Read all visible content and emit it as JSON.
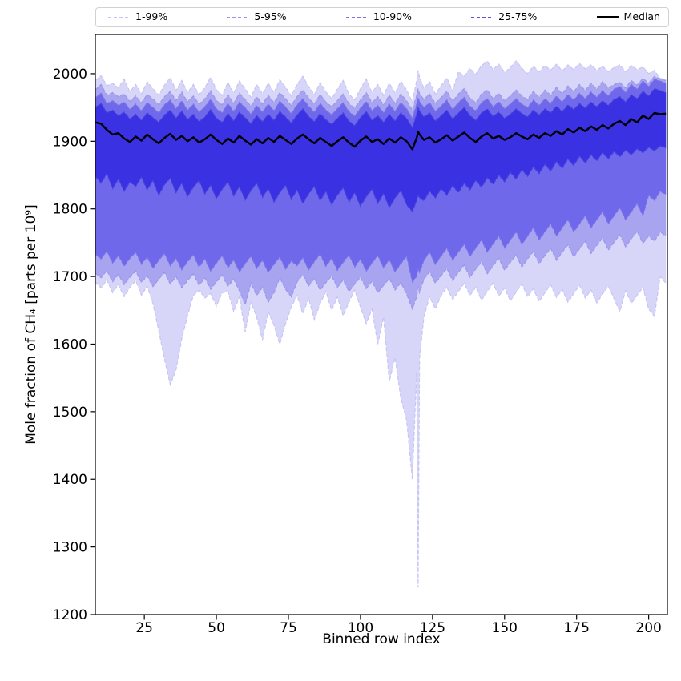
{
  "figure": {
    "background": "#ffffff",
    "spine_color": "#000000"
  },
  "legend": {
    "entries": [
      {
        "label": "1-99%",
        "color": "#c6c5f4",
        "style": "dashed",
        "weight": 1.5
      },
      {
        "label": "5-95%",
        "color": "#9a96ed",
        "style": "dashed",
        "weight": 1.5
      },
      {
        "label": "10-90%",
        "color": "#7a73e9",
        "style": "dashed",
        "weight": 1.5
      },
      {
        "label": "25-75%",
        "color": "#5a51e0",
        "style": "dashed",
        "weight": 1.8
      },
      {
        "label": "Median",
        "color": "#000000",
        "style": "solid",
        "weight": 3
      }
    ]
  },
  "chart_data": {
    "type": "area",
    "title": "",
    "xlabel": "Binned row index",
    "ylabel": "Mole fraction of CH₄ [parts per 10⁹]",
    "legend_position": "top",
    "grid": false,
    "xlim": [
      8,
      206.5
    ],
    "ylim": [
      1200,
      2058
    ],
    "xticks": [
      25,
      50,
      75,
      100,
      125,
      150,
      175,
      200
    ],
    "yticks": [
      1200,
      1300,
      1400,
      1500,
      1600,
      1700,
      1800,
      1900,
      2000
    ],
    "median_color": "#000000",
    "bands": [
      {
        "label": "1-99%",
        "lower": "p01",
        "upper": "p99",
        "fill": "#d8d6f8",
        "line": "#c6c5f4"
      },
      {
        "label": "5-95%",
        "lower": "p05",
        "upper": "p95",
        "fill": "#a8a4f0",
        "line": "#9a96ed"
      },
      {
        "label": "10-90%",
        "lower": "p10",
        "upper": "p90",
        "fill": "#6f68ea",
        "line": "#7a73e9"
      },
      {
        "label": "25-75%",
        "lower": "p25",
        "upper": "p75",
        "fill": "#3a31e2",
        "line": "#4a42dc"
      }
    ],
    "x": [
      8,
      10,
      12,
      14,
      16,
      18,
      20,
      22,
      24,
      26,
      28,
      30,
      32,
      34,
      36,
      38,
      40,
      42,
      44,
      46,
      48,
      50,
      52,
      54,
      56,
      58,
      60,
      62,
      64,
      66,
      68,
      70,
      72,
      74,
      76,
      78,
      80,
      82,
      84,
      86,
      88,
      90,
      92,
      94,
      96,
      98,
      100,
      102,
      104,
      106,
      108,
      110,
      112,
      114,
      116,
      118,
      119.5,
      120,
      120.5,
      122,
      124,
      126,
      128,
      130,
      132,
      134,
      136,
      138,
      140,
      142,
      144,
      146,
      148,
      150,
      152,
      154,
      156,
      158,
      160,
      162,
      164,
      166,
      168,
      170,
      172,
      174,
      176,
      178,
      180,
      182,
      184,
      186,
      188,
      190,
      192,
      194,
      196,
      198,
      200,
      202,
      204,
      206
    ],
    "series": {
      "median": [
        1928,
        1926,
        1917,
        1910,
        1912,
        1904,
        1899,
        1907,
        1901,
        1910,
        1903,
        1897,
        1905,
        1911,
        1902,
        1908,
        1900,
        1906,
        1898,
        1903,
        1910,
        1902,
        1896,
        1904,
        1898,
        1908,
        1901,
        1895,
        1903,
        1897,
        1905,
        1899,
        1908,
        1902,
        1896,
        1904,
        1910,
        1903,
        1897,
        1905,
        1899,
        1893,
        1900,
        1906,
        1898,
        1892,
        1901,
        1907,
        1899,
        1903,
        1896,
        1904,
        1898,
        1906,
        1900,
        1888,
        1905,
        1914,
        1910,
        1902,
        1906,
        1898,
        1903,
        1909,
        1901,
        1907,
        1913,
        1905,
        1899,
        1907,
        1912,
        1904,
        1908,
        1902,
        1906,
        1912,
        1907,
        1903,
        1910,
        1905,
        1912,
        1908,
        1915,
        1910,
        1918,
        1913,
        1920,
        1915,
        1922,
        1917,
        1924,
        1919,
        1926,
        1930,
        1924,
        1933,
        1928,
        1938,
        1933,
        1942,
        1940,
        1941
      ],
      "p75": [
        1950,
        1956,
        1942,
        1946,
        1938,
        1943,
        1933,
        1940,
        1931,
        1942,
        1935,
        1928,
        1939,
        1946,
        1934,
        1945,
        1932,
        1940,
        1929,
        1936,
        1947,
        1934,
        1928,
        1941,
        1930,
        1943,
        1935,
        1926,
        1938,
        1929,
        1940,
        1931,
        1944,
        1936,
        1927,
        1939,
        1948,
        1937,
        1929,
        1941,
        1932,
        1925,
        1934,
        1942,
        1930,
        1923,
        1935,
        1944,
        1931,
        1938,
        1928,
        1940,
        1930,
        1942,
        1934,
        1920,
        1940,
        1950,
        1945,
        1936,
        1942,
        1930,
        1938,
        1946,
        1933,
        1942,
        1950,
        1938,
        1931,
        1942,
        1948,
        1937,
        1943,
        1934,
        1940,
        1948,
        1941,
        1936,
        1946,
        1939,
        1948,
        1942,
        1952,
        1944,
        1954,
        1947,
        1956,
        1949,
        1958,
        1951,
        1960,
        1953,
        1962,
        1966,
        1958,
        1969,
        1963,
        1974,
        1967,
        1978,
        1975,
        1972
      ],
      "p90": [
        1964,
        1971,
        1956,
        1960,
        1953,
        1958,
        1947,
        1955,
        1945,
        1957,
        1950,
        1942,
        1954,
        1961,
        1948,
        1960,
        1946,
        1955,
        1943,
        1951,
        1962,
        1948,
        1942,
        1956,
        1944,
        1958,
        1950,
        1940,
        1953,
        1943,
        1955,
        1945,
        1959,
        1951,
        1941,
        1954,
        1963,
        1952,
        1943,
        1956,
        1946,
        1939,
        1948,
        1957,
        1944,
        1937,
        1949,
        1959,
        1945,
        1953,
        1942,
        1955,
        1944,
        1957,
        1948,
        1934,
        1955,
        1965,
        1958,
        1950,
        1957,
        1944,
        1952,
        1961,
        1947,
        1957,
        1965,
        1952,
        1945,
        1957,
        1963,
        1951,
        1958,
        1948,
        1955,
        1963,
        1955,
        1950,
        1961,
        1953,
        1963,
        1956,
        1967,
        1958,
        1969,
        1961,
        1971,
        1963,
        1973,
        1965,
        1975,
        1967,
        1977,
        1981,
        1972,
        1984,
        1977,
        1989,
        1981,
        1992,
        1989,
        1986
      ],
      "p95": [
        1976,
        1984,
        1968,
        1972,
        1966,
        1970,
        1959,
        1967,
        1957,
        1969,
        1963,
        1954,
        1966,
        1974,
        1960,
        1973,
        1958,
        1967,
        1955,
        1963,
        1975,
        1960,
        1954,
        1969,
        1956,
        1971,
        1962,
        1952,
        1966,
        1955,
        1968,
        1957,
        1972,
        1963,
        1953,
        1966,
        1976,
        1964,
        1955,
        1969,
        1958,
        1951,
        1960,
        1970,
        1956,
        1949,
        1961,
        1972,
        1957,
        1966,
        1954,
        1968,
        1956,
        1970,
        1960,
        1946,
        1968,
        1978,
        1970,
        1962,
        1970,
        1956,
        1965,
        1974,
        1959,
        1970,
        1978,
        1964,
        1957,
        1970,
        1976,
        1963,
        1971,
        1960,
        1967,
        1976,
        1967,
        1962,
        1974,
        1965,
        1976,
        1968,
        1980,
        1970,
        1982,
        1973,
        1984,
        1975,
        1986,
        1977,
        1988,
        1979,
        1984,
        1987,
        1979,
        1990,
        1983,
        1993,
        1986,
        1996,
        1992,
        1990
      ],
      "p99": [
        1990,
        1997,
        1982,
        1986,
        1979,
        1992,
        1973,
        1984,
        1970,
        1988,
        1978,
        1968,
        1983,
        1994,
        1975,
        1990,
        1972,
        1984,
        1969,
        1979,
        1995,
        1976,
        1968,
        1987,
        1971,
        1989,
        1978,
        1965,
        1984,
        1970,
        1986,
        1972,
        1991,
        1980,
        1967,
        1984,
        1996,
        1981,
        1969,
        1987,
        1973,
        1963,
        1977,
        1990,
        1970,
        1961,
        1978,
        1992,
        1972,
        1984,
        1968,
        1986,
        1971,
        1989,
        1976,
        1958,
        1990,
        2005,
        1995,
        1978,
        1988,
        1970,
        1982,
        1994,
        1974,
        2003,
        1996,
        2008,
        1999,
        2012,
        2018,
        2006,
        2014,
        2002,
        2009,
        2019,
        2008,
        2000,
        2011,
        2003,
        2012,
        2005,
        2014,
        2004,
        2013,
        2006,
        2015,
        2007,
        2013,
        2005,
        2011,
        2003,
        2009,
        2013,
        2003,
        2012,
        2006,
        2010,
        2000,
        2005,
        1993,
        1992
      ],
      "p25": [
        1848,
        1838,
        1852,
        1830,
        1844,
        1826,
        1840,
        1833,
        1847,
        1828,
        1842,
        1820,
        1836,
        1845,
        1824,
        1838,
        1818,
        1832,
        1842,
        1822,
        1835,
        1815,
        1829,
        1840,
        1819,
        1833,
        1813,
        1827,
        1838,
        1817,
        1830,
        1810,
        1824,
        1835,
        1814,
        1828,
        1808,
        1822,
        1833,
        1812,
        1826,
        1806,
        1820,
        1831,
        1810,
        1824,
        1804,
        1818,
        1829,
        1808,
        1822,
        1802,
        1816,
        1827,
        1806,
        1796,
        1812,
        1820,
        1816,
        1812,
        1826,
        1816,
        1830,
        1820,
        1834,
        1824,
        1838,
        1828,
        1842,
        1832,
        1846,
        1836,
        1850,
        1840,
        1854,
        1844,
        1858,
        1848,
        1862,
        1852,
        1866,
        1856,
        1870,
        1860,
        1874,
        1864,
        1878,
        1868,
        1880,
        1871,
        1883,
        1874,
        1885,
        1877,
        1887,
        1880,
        1889,
        1883,
        1891,
        1886,
        1893,
        1890
      ],
      "p10": [
        1733,
        1726,
        1738,
        1720,
        1731,
        1715,
        1727,
        1736,
        1718,
        1729,
        1712,
        1724,
        1734,
        1716,
        1727,
        1710,
        1722,
        1732,
        1714,
        1726,
        1708,
        1720,
        1731,
        1713,
        1725,
        1707,
        1719,
        1730,
        1712,
        1724,
        1706,
        1718,
        1729,
        1711,
        1723,
        1716,
        1728,
        1710,
        1722,
        1733,
        1715,
        1727,
        1709,
        1721,
        1732,
        1714,
        1726,
        1708,
        1720,
        1731,
        1713,
        1725,
        1707,
        1719,
        1730,
        1692,
        1700,
        1712,
        1706,
        1724,
        1736,
        1718,
        1730,
        1742,
        1724,
        1736,
        1748,
        1730,
        1742,
        1754,
        1736,
        1748,
        1760,
        1742,
        1754,
        1766,
        1748,
        1760,
        1772,
        1754,
        1766,
        1778,
        1760,
        1772,
        1784,
        1766,
        1778,
        1790,
        1772,
        1784,
        1796,
        1778,
        1790,
        1802,
        1784,
        1796,
        1808,
        1790,
        1820,
        1812,
        1826,
        1821
      ],
      "p05": [
        1705,
        1698,
        1709,
        1692,
        1703,
        1688,
        1699,
        1708,
        1691,
        1701,
        1685,
        1696,
        1706,
        1689,
        1700,
        1683,
        1694,
        1704,
        1687,
        1698,
        1681,
        1692,
        1702,
        1685,
        1696,
        1679,
        1658,
        1690,
        1672,
        1684,
        1662,
        1676,
        1698,
        1681,
        1670,
        1692,
        1703,
        1686,
        1697,
        1680,
        1691,
        1701,
        1684,
        1695,
        1678,
        1689,
        1699,
        1682,
        1693,
        1676,
        1687,
        1697,
        1680,
        1691,
        1674,
        1652,
        1670,
        1685,
        1676,
        1696,
        1707,
        1690,
        1701,
        1712,
        1694,
        1706,
        1717,
        1699,
        1711,
        1722,
        1704,
        1716,
        1727,
        1709,
        1721,
        1732,
        1714,
        1726,
        1737,
        1719,
        1731,
        1742,
        1724,
        1736,
        1747,
        1729,
        1741,
        1752,
        1734,
        1746,
        1757,
        1739,
        1751,
        1762,
        1744,
        1756,
        1767,
        1749,
        1760,
        1752,
        1766,
        1760
      ],
      "p01": [
        1692,
        1683,
        1695,
        1676,
        1688,
        1670,
        1684,
        1694,
        1672,
        1686,
        1660,
        1620,
        1578,
        1540,
        1562,
        1608,
        1642,
        1672,
        1680,
        1668,
        1675,
        1656,
        1676,
        1678,
        1648,
        1670,
        1618,
        1662,
        1640,
        1606,
        1648,
        1628,
        1600,
        1630,
        1655,
        1672,
        1645,
        1668,
        1636,
        1660,
        1678,
        1650,
        1670,
        1642,
        1662,
        1680,
        1655,
        1630,
        1652,
        1600,
        1640,
        1545,
        1580,
        1520,
        1488,
        1400,
        1560,
        1240,
        1580,
        1640,
        1670,
        1652,
        1672,
        1684,
        1666,
        1678,
        1690,
        1672,
        1684,
        1665,
        1678,
        1690,
        1671,
        1683,
        1664,
        1677,
        1689,
        1670,
        1682,
        1663,
        1676,
        1688,
        1669,
        1681,
        1662,
        1675,
        1687,
        1668,
        1680,
        1661,
        1674,
        1686,
        1667,
        1648,
        1679,
        1660,
        1672,
        1684,
        1652,
        1641,
        1700,
        1690
      ]
    }
  }
}
